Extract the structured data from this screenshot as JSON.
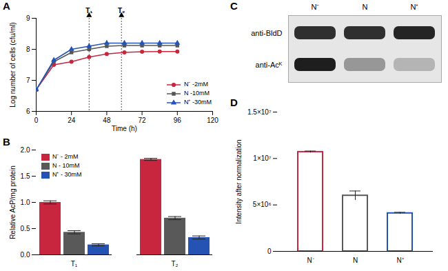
{
  "chart_data": [
    {
      "type": "line",
      "title": "A",
      "x_label": "Time (h)",
      "y_label": "Log number of cells (cfu/ml)",
      "x": [
        0,
        12,
        24,
        36,
        48,
        60,
        72,
        84,
        96
      ],
      "series": [
        {
          "name": "N⁻ -2mM",
          "color": "#c8253f",
          "marker": "circle",
          "values": [
            6.7,
            7.5,
            7.6,
            7.75,
            7.85,
            7.9,
            7.92,
            7.93,
            7.93
          ]
        },
        {
          "name": "N -10mM",
          "color": "#555555",
          "marker": "square",
          "values": [
            6.7,
            7.6,
            7.9,
            8.0,
            8.1,
            8.12,
            8.12,
            8.12,
            8.12
          ]
        },
        {
          "name": "N⁺ -30mM",
          "color": "#2453b3",
          "marker": "triangle",
          "values": [
            6.7,
            7.65,
            8.0,
            8.1,
            8.2,
            8.2,
            8.2,
            8.2,
            8.2
          ]
        }
      ],
      "annotations": [
        {
          "text": "T₁",
          "x": 36
        },
        {
          "text": "T₂",
          "x": 58
        }
      ],
      "xlim": [
        0,
        120
      ],
      "xticks": [
        0,
        24,
        48,
        72,
        96,
        120
      ],
      "ylim": [
        6,
        9
      ],
      "yticks": [
        6,
        7,
        8,
        9
      ],
      "legend": "bottom-right"
    },
    {
      "type": "bar",
      "title": "B",
      "y_label": "Relative AcP/mg protein",
      "categories": [
        "T₁",
        "T₂"
      ],
      "series": [
        {
          "name": "N⁻ - 2mM",
          "color": "#c8253f",
          "values": [
            1.0,
            1.82
          ],
          "errors": [
            0.03,
            0.02
          ]
        },
        {
          "name": "N - 10mM",
          "color": "#595959",
          "values": [
            0.43,
            0.7
          ],
          "errors": [
            0.03,
            0.03
          ]
        },
        {
          "name": "N⁺ - 30mM",
          "color": "#2453b3",
          "values": [
            0.19,
            0.33
          ],
          "errors": [
            0.02,
            0.03
          ]
        }
      ],
      "ylim": [
        0,
        2
      ],
      "yticks": [
        {
          "value": 0,
          "label": "0.0"
        },
        {
          "value": 0.5,
          "label": "0.5"
        },
        {
          "value": 1,
          "label": "1.0"
        },
        {
          "value": 1.5,
          "label": "1.5"
        },
        {
          "value": 2,
          "label": "2.0"
        }
      ],
      "legend": "top-left"
    },
    {
      "type": "blot",
      "title": "C",
      "categories": [
        "N⁻",
        "N",
        "N⁺"
      ],
      "series": [
        {
          "name": "anti-BldD",
          "values": [
            0.85,
            0.85,
            0.88
          ]
        },
        {
          "name": "anti-Acᴷ",
          "values": [
            0.9,
            0.5,
            0.4
          ]
        }
      ]
    },
    {
      "type": "bar",
      "title": "D",
      "y_label": "Intensity after normalization",
      "categories": [
        "N⁻",
        "N",
        "N⁺"
      ],
      "values": [
        10700000,
        6000000,
        4100000
      ],
      "errors": [
        100000,
        500000,
        100000
      ],
      "colors": [
        "#c8253f",
        "#595959",
        "#2453b3"
      ],
      "ylim": [
        0,
        15000000
      ],
      "yticks": [
        {
          "value": 0,
          "label": "0"
        },
        {
          "value": 5000000,
          "label": "5×10⁶"
        },
        {
          "value": 10000000,
          "label": "1×10⁷"
        },
        {
          "value": 15000000,
          "label": "1.5×10⁷"
        }
      ]
    }
  ]
}
